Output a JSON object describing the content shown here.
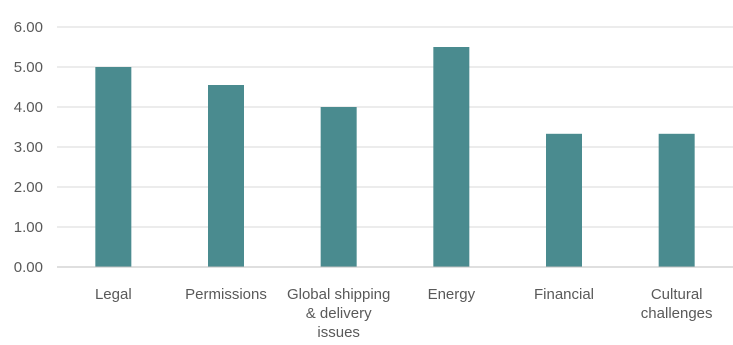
{
  "chart_data": {
    "type": "bar",
    "categories": [
      [
        "Legal"
      ],
      [
        "Permissions"
      ],
      [
        "Global shipping",
        "& delivery",
        "issues"
      ],
      [
        "Energy"
      ],
      [
        "Financial"
      ],
      [
        "Cultural",
        "challenges"
      ]
    ],
    "values": [
      5.0,
      4.55,
      4.0,
      5.5,
      3.33,
      3.33
    ],
    "title": "",
    "xlabel": "",
    "ylabel": "",
    "ylim": [
      0,
      6
    ],
    "yticks": [
      "0.00",
      "1.00",
      "2.00",
      "3.00",
      "4.00",
      "5.00",
      "6.00"
    ],
    "grid": true,
    "legend": "none",
    "bar_color": "#4a8b8f",
    "gridline_color": "#d9d9d9",
    "text_color": "#595959"
  }
}
